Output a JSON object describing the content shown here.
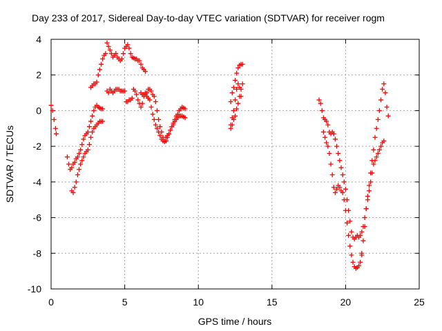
{
  "chart_data": {
    "type": "scatter",
    "title": "Day 233 of 2017, Sidereal Day-to-day VTEC variation (SDTVAR) for receiver rogm",
    "xlabel": "GPS time / hours",
    "ylabel": "SDTVAR / TECUs",
    "xlim": [
      0,
      25
    ],
    "ylim": [
      -10,
      4
    ],
    "xticks": [
      "0",
      "5",
      "10",
      "15",
      "20",
      "25"
    ],
    "yticks": [
      "-10",
      "-8",
      "-6",
      "-4",
      "-2",
      "0",
      "2",
      "4"
    ],
    "grid": true,
    "marker": "plus",
    "color": "#ff0000",
    "series": [
      {
        "segments": [
          {
            "x": [
              0.0,
              0.1,
              0.2,
              0.3,
              0.35
            ],
            "y": [
              0.3,
              0.0,
              -0.5,
              -1.0,
              -1.3
            ]
          },
          {
            "x": [
              1.1,
              1.2,
              1.3,
              1.4,
              1.5,
              1.6,
              1.7,
              1.8,
              1.9,
              2.0,
              2.1,
              2.2,
              2.3,
              2.4,
              2.5,
              2.6,
              2.7,
              2.8,
              2.9,
              3.0,
              3.1,
              3.2,
              3.3,
              3.4,
              3.5
            ],
            "y": [
              -2.6,
              -3.0,
              -3.3,
              -3.2,
              -3.0,
              -2.9,
              -2.7,
              -2.6,
              -2.4,
              -2.2,
              -1.9,
              -1.6,
              -1.4,
              -1.3,
              -1.2,
              -0.9,
              -0.6,
              -0.3,
              0.0,
              0.2,
              0.3,
              0.2,
              0.15,
              0.1,
              0.1
            ]
          },
          {
            "x": [
              1.4,
              1.5,
              1.6,
              1.7,
              1.8,
              1.9,
              2.0,
              2.1,
              2.2,
              2.3,
              2.4,
              2.5,
              2.6,
              2.7,
              2.8,
              2.9,
              3.0,
              3.1,
              3.2,
              3.3,
              3.4,
              3.5
            ],
            "y": [
              -4.5,
              -4.6,
              -4.3,
              -4.0,
              -3.6,
              -3.3,
              -3.0,
              -2.8,
              -2.6,
              -2.4,
              -2.3,
              -2.2,
              -1.9,
              -1.5,
              -1.2,
              -1.0,
              -0.9,
              -0.8,
              -0.7,
              -0.6,
              -0.6,
              -0.6
            ]
          },
          {
            "x": [
              2.7,
              2.8,
              2.9,
              3.0,
              3.1,
              3.2,
              3.3,
              3.4,
              3.5,
              3.6,
              3.7
            ],
            "y": [
              1.3,
              1.4,
              1.5,
              1.5,
              1.6,
              2.0,
              2.3,
              2.6,
              2.9,
              3.1,
              3.2
            ]
          },
          {
            "x": [
              3.8,
              3.9,
              4.0,
              4.1,
              4.2,
              4.3,
              4.4,
              4.5,
              4.6,
              4.7,
              4.8,
              4.9,
              5.0,
              5.1,
              5.2,
              5.3,
              5.4,
              5.5,
              5.6,
              5.7,
              5.8,
              5.9,
              6.0,
              6.1,
              6.2,
              6.3,
              6.4
            ],
            "y": [
              3.8,
              3.6,
              3.4,
              3.2,
              3.0,
              3.1,
              3.2,
              3.0,
              2.9,
              2.8,
              2.9,
              3.2,
              3.5,
              3.6,
              3.7,
              3.5,
              3.2,
              3.0,
              2.95,
              2.9,
              2.9,
              2.8,
              2.8,
              2.6,
              2.4,
              2.3,
              2.2
            ]
          },
          {
            "x": [
              3.8,
              3.9,
              4.0,
              4.1,
              4.2,
              4.3,
              4.4,
              4.5,
              4.6,
              4.7,
              4.8,
              4.9,
              5.0
            ],
            "y": [
              1.1,
              1.0,
              1.2,
              1.1,
              1.0,
              1.1,
              1.2,
              1.2,
              1.2,
              1.1,
              1.1,
              1.1,
              1.1
            ]
          },
          {
            "x": [
              5.1,
              5.2,
              5.3,
              5.4,
              5.5,
              5.6,
              5.7,
              5.8,
              5.9,
              6.0,
              6.1,
              6.2,
              6.3,
              6.4,
              6.5,
              6.6,
              6.7,
              6.8,
              6.9,
              7.0,
              7.1,
              7.2,
              7.3,
              7.4,
              7.5,
              7.6,
              7.7,
              7.8
            ],
            "y": [
              0.5,
              0.5,
              0.6,
              0.6,
              0.7,
              1.2,
              1.1,
              0.9,
              0.6,
              0.4,
              0.2,
              0.4,
              0.9,
              1.0,
              0.8,
              0.7,
              0.6,
              0.2,
              -0.2,
              -0.5,
              -0.8,
              -1.0,
              -1.2,
              -1.4,
              -1.6,
              -1.7,
              -1.75,
              -1.7
            ]
          },
          {
            "x": [
              6.1,
              6.2,
              6.3,
              6.4,
              6.5,
              6.6,
              6.7,
              6.8,
              6.9,
              7.0,
              7.1,
              7.2,
              7.3,
              7.4,
              7.5,
              7.6,
              7.7,
              7.8,
              7.9,
              8.0,
              8.1,
              8.2,
              8.3,
              8.4,
              8.5,
              8.6,
              8.7,
              8.8,
              8.9,
              9.0,
              9.1
            ],
            "y": [
              1.0,
              0.9,
              0.8,
              0.9,
              1.0,
              1.2,
              1.2,
              1.1,
              0.9,
              0.8,
              0.5,
              0.0,
              -0.5,
              -0.9,
              -1.2,
              -1.5,
              -1.7,
              -1.7,
              -1.5,
              -1.3,
              -1.1,
              -0.9,
              -0.7,
              -0.5,
              -0.3,
              -0.2,
              0.0,
              0.1,
              0.2,
              0.15,
              0.1
            ]
          },
          {
            "x": [
              7.8,
              7.9,
              8.0,
              8.1,
              8.2,
              8.3,
              8.4,
              8.5,
              8.6,
              8.7,
              8.8,
              8.9,
              9.0,
              9.1
            ],
            "y": [
              -1.5,
              -1.4,
              -1.3,
              -1.1,
              -0.9,
              -0.8,
              -0.6,
              -0.5,
              -0.4,
              -0.3,
              -0.3,
              -0.3,
              -0.35,
              -0.4
            ]
          },
          {
            "x": [
              12.2,
              12.3,
              12.4,
              12.5,
              12.6,
              12.7,
              12.8,
              12.9,
              13.0
            ],
            "y": [
              0.5,
              1.0,
              1.3,
              1.7,
              2.1,
              2.4,
              2.55,
              2.6,
              2.6
            ]
          },
          {
            "x": [
              12.2,
              12.3,
              12.4,
              12.5,
              12.6,
              12.7,
              12.8,
              12.9
            ],
            "y": [
              -0.8,
              -0.4,
              0.0,
              0.6,
              1.2,
              1.5,
              1.3,
              0.8
            ]
          },
          {
            "x": [
              12.2,
              12.3,
              12.4,
              12.5,
              12.6,
              12.7,
              12.8,
              12.9,
              13.0
            ],
            "y": [
              -1.0,
              -0.8,
              -0.5,
              -0.3,
              0.1,
              0.4,
              0.8,
              1.2,
              1.5
            ]
          },
          {
            "x": [
              18.2,
              18.3,
              18.4,
              18.5,
              18.6,
              18.7,
              18.8,
              18.9,
              19.0,
              19.1,
              19.2,
              19.3,
              19.4,
              19.5,
              19.6,
              19.7,
              19.8,
              19.9,
              20.0,
              20.1,
              20.2,
              20.3,
              20.4,
              20.5,
              20.6,
              20.7,
              20.8
            ],
            "y": [
              0.6,
              0.4,
              0.0,
              -0.4,
              -0.5,
              -0.6,
              -0.8,
              -1.2,
              -1.3,
              -1.2,
              -1.3,
              -1.6,
              -2.0,
              -2.4,
              -2.8,
              -3.2,
              -3.6,
              -4.0,
              -4.4,
              -5.0,
              -5.6,
              -6.2,
              -6.8,
              -7.1,
              -7.2,
              -7.1,
              -7.0
            ]
          },
          {
            "x": [
              18.5,
              18.6,
              18.7,
              18.8,
              18.9,
              19.0,
              19.1,
              19.2,
              19.3,
              19.4,
              19.5,
              19.6,
              19.7,
              19.8,
              19.9,
              20.0,
              20.1,
              20.2,
              20.3,
              20.4,
              20.5,
              20.6,
              20.7,
              20.8,
              20.9,
              21.0,
              21.1
            ],
            "y": [
              -1.2,
              -1.5,
              -1.8,
              -2.0,
              -2.4,
              -3.0,
              -3.6,
              -4.3,
              -4.6,
              -4.4,
              -4.2,
              -4.3,
              -4.5,
              -4.6,
              -5.0,
              -5.6,
              -6.3,
              -7.0,
              -7.6,
              -8.1,
              -8.5,
              -8.75,
              -8.85,
              -8.8,
              -8.7,
              -8.5,
              -8.1
            ]
          },
          {
            "x": [
              20.9,
              21.0,
              21.1,
              21.2,
              21.3,
              21.4,
              21.5,
              21.6,
              21.7,
              21.8,
              21.9,
              22.0,
              22.1,
              22.2,
              22.3,
              22.4,
              22.5,
              22.6
            ],
            "y": [
              -7.1,
              -7.0,
              -6.8,
              -6.5,
              -6.0,
              -5.5,
              -5.0,
              -4.5,
              -4.0,
              -3.5,
              -3.0,
              -2.8,
              -2.6,
              -2.4,
              -2.2,
              -2.0,
              -1.8,
              -1.7
            ]
          },
          {
            "x": [
              21.1,
              21.2,
              21.3,
              21.4,
              21.5,
              21.6,
              21.7,
              21.8,
              21.9,
              22.0,
              22.1,
              22.2,
              22.3,
              22.4,
              22.5,
              22.6,
              22.7,
              22.8,
              22.9
            ],
            "y": [
              -8.0,
              -7.3,
              -6.5,
              -5.5,
              -4.8,
              -4.2,
              -3.5,
              -2.8,
              -2.2,
              -1.5,
              -1.0,
              -0.5,
              0.0,
              0.6,
              1.2,
              1.5,
              1.0,
              0.2,
              -0.3
            ]
          }
        ]
      }
    ]
  }
}
